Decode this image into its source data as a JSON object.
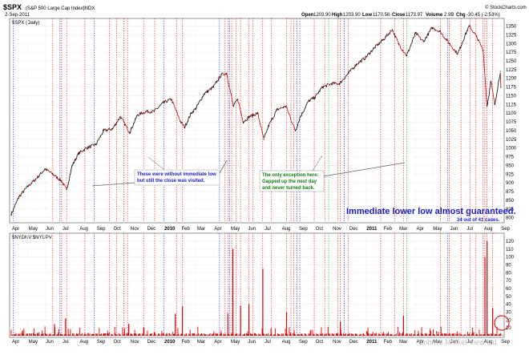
{
  "header": {
    "symbol": "$SPX",
    "name": "(S&P 500 Large Cap Index)",
    "exchange": "INDX",
    "date": "2-Sep-2011",
    "source": "© StockCharts.com",
    "open_label": "Open",
    "open": "1203.90",
    "high_label": "High",
    "high": "1203.90",
    "low_label": "Low",
    "low": "1170.56",
    "close_label": "Close",
    "close": "1173.97",
    "volume_label": "Volume",
    "volume": "2.9B",
    "chg_label": "Chg",
    "chg": "-30.45 (-2.53%)"
  },
  "price_panel_label": "$SPX (Daily)",
  "volume_panel_label": "$NYDNV:$NYUPV",
  "watermark": "Cobra's Market View Ltd.",
  "annotations": {
    "note1": [
      "These were without immediate low",
      "but still the close was visited."
    ],
    "note2": [
      "The only exception here:",
      "Gapped up the next day",
      "and never turned back."
    ],
    "headline": "Immediate lower low almost guaranteed.",
    "count": "34 out of 41 cases."
  },
  "colors": {
    "price_up": "#000000",
    "price_down": "#cc0000",
    "volume_bar": "#e00000",
    "red_marker": "#e01010",
    "blue_marker": "#2020cc",
    "green_marker": "#10a010",
    "annotation_blue": "#1a1acc",
    "annotation_green": "#137a13"
  },
  "chart_data": [
    {
      "type": "line",
      "series": [
        {
          "name": "$SPX (Daily)",
          "x": [
            "2009-04-01",
            "2009-04-15",
            "2009-05-01",
            "2009-05-15",
            "2009-06-01",
            "2009-06-15",
            "2009-07-01",
            "2009-07-10",
            "2009-07-20",
            "2009-08-01",
            "2009-08-15",
            "2009-09-01",
            "2009-09-15",
            "2009-10-01",
            "2009-10-15",
            "2009-11-01",
            "2009-11-15",
            "2009-12-01",
            "2009-12-15",
            "2010-01-01",
            "2010-01-15",
            "2010-02-01",
            "2010-02-08",
            "2010-02-20",
            "2010-03-01",
            "2010-03-15",
            "2010-04-01",
            "2010-04-15",
            "2010-04-25",
            "2010-05-07",
            "2010-05-15",
            "2010-05-25",
            "2010-06-05",
            "2010-06-20",
            "2010-07-01",
            "2010-07-10",
            "2010-07-25",
            "2010-08-10",
            "2010-08-27",
            "2010-09-05",
            "2010-09-20",
            "2010-10-01",
            "2010-10-15",
            "2010-11-01",
            "2010-11-15",
            "2010-12-01",
            "2010-12-15",
            "2011-01-01",
            "2011-01-15",
            "2011-02-01",
            "2011-02-18",
            "2011-03-01",
            "2011-03-16",
            "2011-04-01",
            "2011-04-15",
            "2011-05-01",
            "2011-05-15",
            "2011-06-01",
            "2011-06-16",
            "2011-07-01",
            "2011-07-07",
            "2011-07-20",
            "2011-08-01",
            "2011-08-08",
            "2011-08-15",
            "2011-08-22",
            "2011-09-01",
            "2011-09-02"
          ],
          "y": [
            810,
            860,
            890,
            910,
            940,
            925,
            905,
            880,
            950,
            985,
            1000,
            1010,
            1050,
            1055,
            1090,
            1045,
            1095,
            1105,
            1105,
            1130,
            1140,
            1075,
            1060,
            1100,
            1115,
            1155,
            1175,
            1210,
            1215,
            1120,
            1140,
            1075,
            1090,
            1100,
            1025,
            1065,
            1110,
            1120,
            1050,
            1090,
            1135,
            1145,
            1175,
            1185,
            1185,
            1215,
            1240,
            1260,
            1285,
            1310,
            1340,
            1300,
            1265,
            1330,
            1305,
            1345,
            1335,
            1300,
            1270,
            1330,
            1350,
            1320,
            1280,
            1120,
            1190,
            1125,
            1220,
            1174
          ]
        }
      ],
      "xticks": [
        "Apr",
        "May",
        "Jun",
        "Jul",
        "Aug",
        "Sep",
        "Oct",
        "Nov",
        "Dec",
        "2010",
        "Feb",
        "Mar",
        "Apr",
        "May",
        "Jun",
        "Jul",
        "Aug",
        "Sep",
        "Oct",
        "Nov",
        "Dec",
        "2011",
        "Feb",
        "Mar",
        "Apr",
        "May",
        "Jun",
        "Jul",
        "Aug",
        "Sep"
      ],
      "yticks": [
        800,
        825,
        850,
        875,
        900,
        925,
        950,
        975,
        1000,
        1025,
        1050,
        1075,
        1100,
        1125,
        1150,
        1175,
        1200,
        1225,
        1250,
        1275,
        1300,
        1325,
        1350
      ],
      "ylim": [
        790,
        1365
      ],
      "markers": {
        "red": [
          "2009-06-15",
          "2009-07-01",
          "2009-07-10",
          "2009-08-12",
          "2009-09-25",
          "2009-10-08",
          "2009-10-21",
          "2009-10-28",
          "2009-11-26",
          "2009-12-16",
          "2010-01-25",
          "2010-02-04",
          "2010-04-22",
          "2010-04-27",
          "2010-05-04",
          "2010-05-12",
          "2010-05-20",
          "2010-06-04",
          "2010-06-11",
          "2010-06-29",
          "2010-07-15",
          "2010-08-11",
          "2010-08-19",
          "2010-08-24",
          "2010-09-30",
          "2010-10-19",
          "2010-11-12",
          "2010-11-16",
          "2010-11-30",
          "2011-01-28",
          "2011-02-22",
          "2011-03-10",
          "2011-05-16",
          "2011-06-01",
          "2011-06-22",
          "2011-07-08",
          "2011-07-19",
          "2011-08-01",
          "2011-08-04",
          "2011-08-08",
          "2011-08-18"
        ],
        "blue": [
          "2009-04-05",
          "2009-06-28",
          "2009-08-29",
          "2010-01-02",
          "2010-04-12",
          "2010-04-30",
          "2010-08-30",
          "2010-09-04",
          "2010-11-23",
          "2011-05-29"
        ],
        "green": [
          "2010-10-26",
          "2011-03-16"
        ]
      }
    },
    {
      "type": "bar",
      "series": [
        {
          "name": "$NYDNV:$NYUPV",
          "x": [
            "2009-06-18",
            "2009-07-08",
            "2009-10-30",
            "2010-01-22",
            "2010-02-04",
            "2010-04-27",
            "2010-05-06",
            "2010-05-20",
            "2010-06-04",
            "2010-06-29",
            "2010-08-11",
            "2010-11-16",
            "2011-03-10",
            "2011-08-04",
            "2011-08-08",
            "2011-08-18"
          ],
          "y": [
            15,
            22,
            15,
            28,
            37,
            28,
            110,
            38,
            40,
            85,
            30,
            18,
            25,
            100,
            120,
            35
          ]
        }
      ],
      "xticks": [
        "Apr",
        "May",
        "Jun",
        "Jul",
        "Aug",
        "Sep",
        "Oct",
        "Nov",
        "Dec",
        "2010",
        "Feb",
        "Mar",
        "Apr",
        "May",
        "Jun",
        "Jul",
        "Aug",
        "Sep",
        "Oct",
        "Nov",
        "Dec",
        "2011",
        "Feb",
        "Mar",
        "Apr",
        "May",
        "Jun",
        "Jul",
        "Aug",
        "Sep"
      ],
      "yticks": [
        10,
        20,
        30,
        40,
        50,
        60,
        70,
        80,
        90,
        100,
        110,
        120
      ],
      "ylim": [
        0,
        125
      ]
    }
  ]
}
